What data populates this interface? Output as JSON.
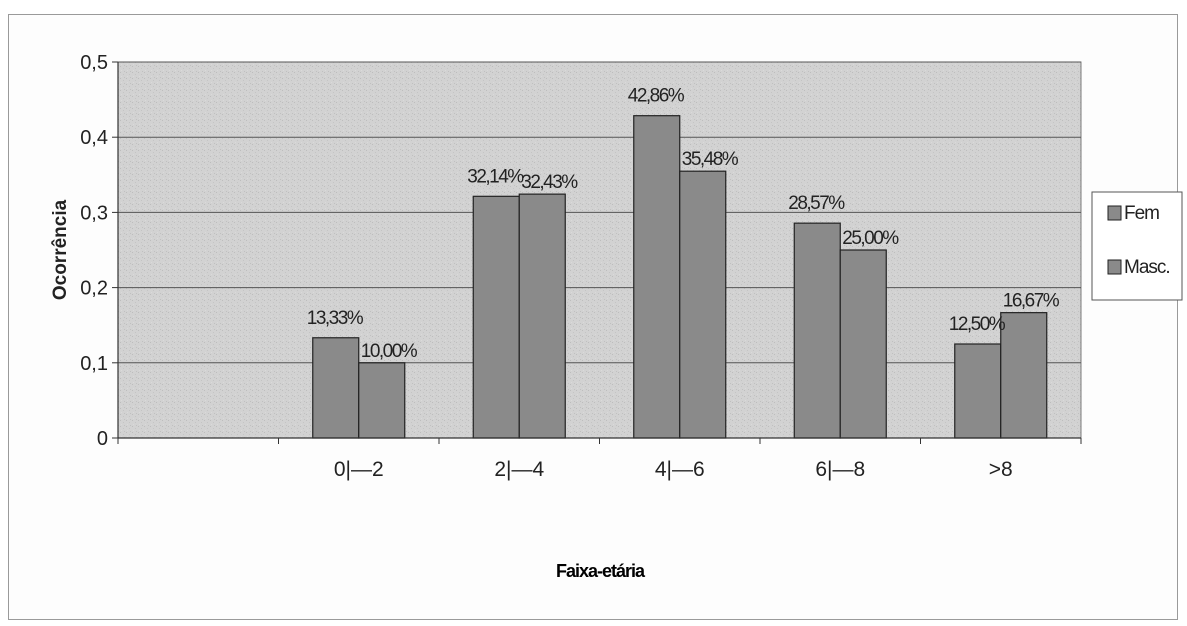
{
  "chart_data": {
    "type": "bar",
    "title": "",
    "xlabel": "Faixa-etária",
    "ylabel": "Ocorrência",
    "categories": [
      "0|—2",
      "2|—4",
      "4|—6",
      "6|—8",
      ">8"
    ],
    "series": [
      {
        "name": "Fem",
        "values": [
          0.1333,
          0.3214,
          0.4286,
          0.2857,
          0.125
        ],
        "labels": [
          "13,33%",
          "32,14%",
          "42,86%",
          "28,57%",
          "12,50%"
        ]
      },
      {
        "name": "Masc.",
        "values": [
          0.1,
          0.3243,
          0.3548,
          0.25,
          0.1667
        ],
        "labels": [
          "10,00%",
          "32,43%",
          "35,48%",
          "25,00%",
          "16,67%"
        ]
      }
    ],
    "ylim": [
      0,
      0.5
    ],
    "yticks": [
      "0",
      "0,1",
      "0,2",
      "0,3",
      "0,4",
      "0,5"
    ],
    "grid": true,
    "legend_position": "right",
    "colors": {
      "bar": "#8a8a8a",
      "plot_background": "#cfcfcf",
      "gridline": "#555555"
    }
  }
}
